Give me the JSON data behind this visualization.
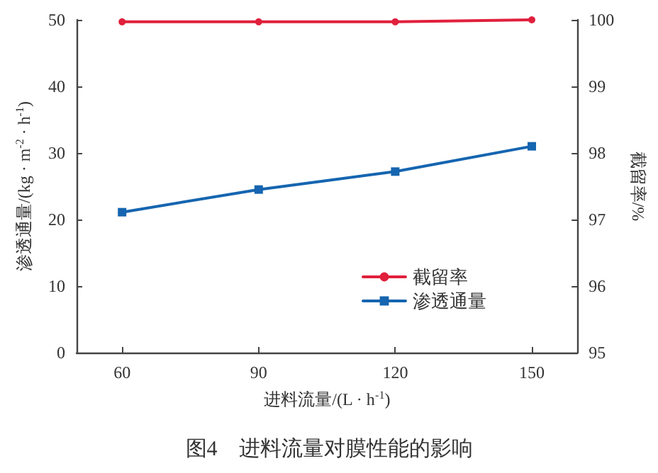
{
  "chart_data": {
    "type": "line",
    "title": "图4　进料流量对膜性能的影响",
    "xlabel": "进料流量/(L · h$^{-1}$)",
    "ylabel": "渗透通量/(kg · m$^{-2}$ · h$^{-1}$)",
    "y2label": "截留率/%",
    "x": [
      60,
      90,
      120,
      150
    ],
    "xlim": [
      50,
      160
    ],
    "xticks": [
      60,
      90,
      120,
      150
    ],
    "ylim": [
      0,
      50
    ],
    "yticks": [
      0,
      10,
      20,
      30,
      40,
      50
    ],
    "y2lim": [
      95,
      100
    ],
    "y2ticks": [
      95,
      96,
      97,
      98,
      99,
      100
    ],
    "series": [
      {
        "name": "截留率",
        "color": "#e0203c",
        "values": [
          99.97,
          99.97,
          99.97,
          100.0
        ],
        "axis": "y2",
        "marker": "circle"
      },
      {
        "name": "渗透通量",
        "color": "#1565b0",
        "values": [
          21.1,
          24.5,
          27.2,
          31.0
        ],
        "marker": "square"
      }
    ],
    "legend": "bottom right",
    "grid": false,
    "line_style": "solid"
  }
}
